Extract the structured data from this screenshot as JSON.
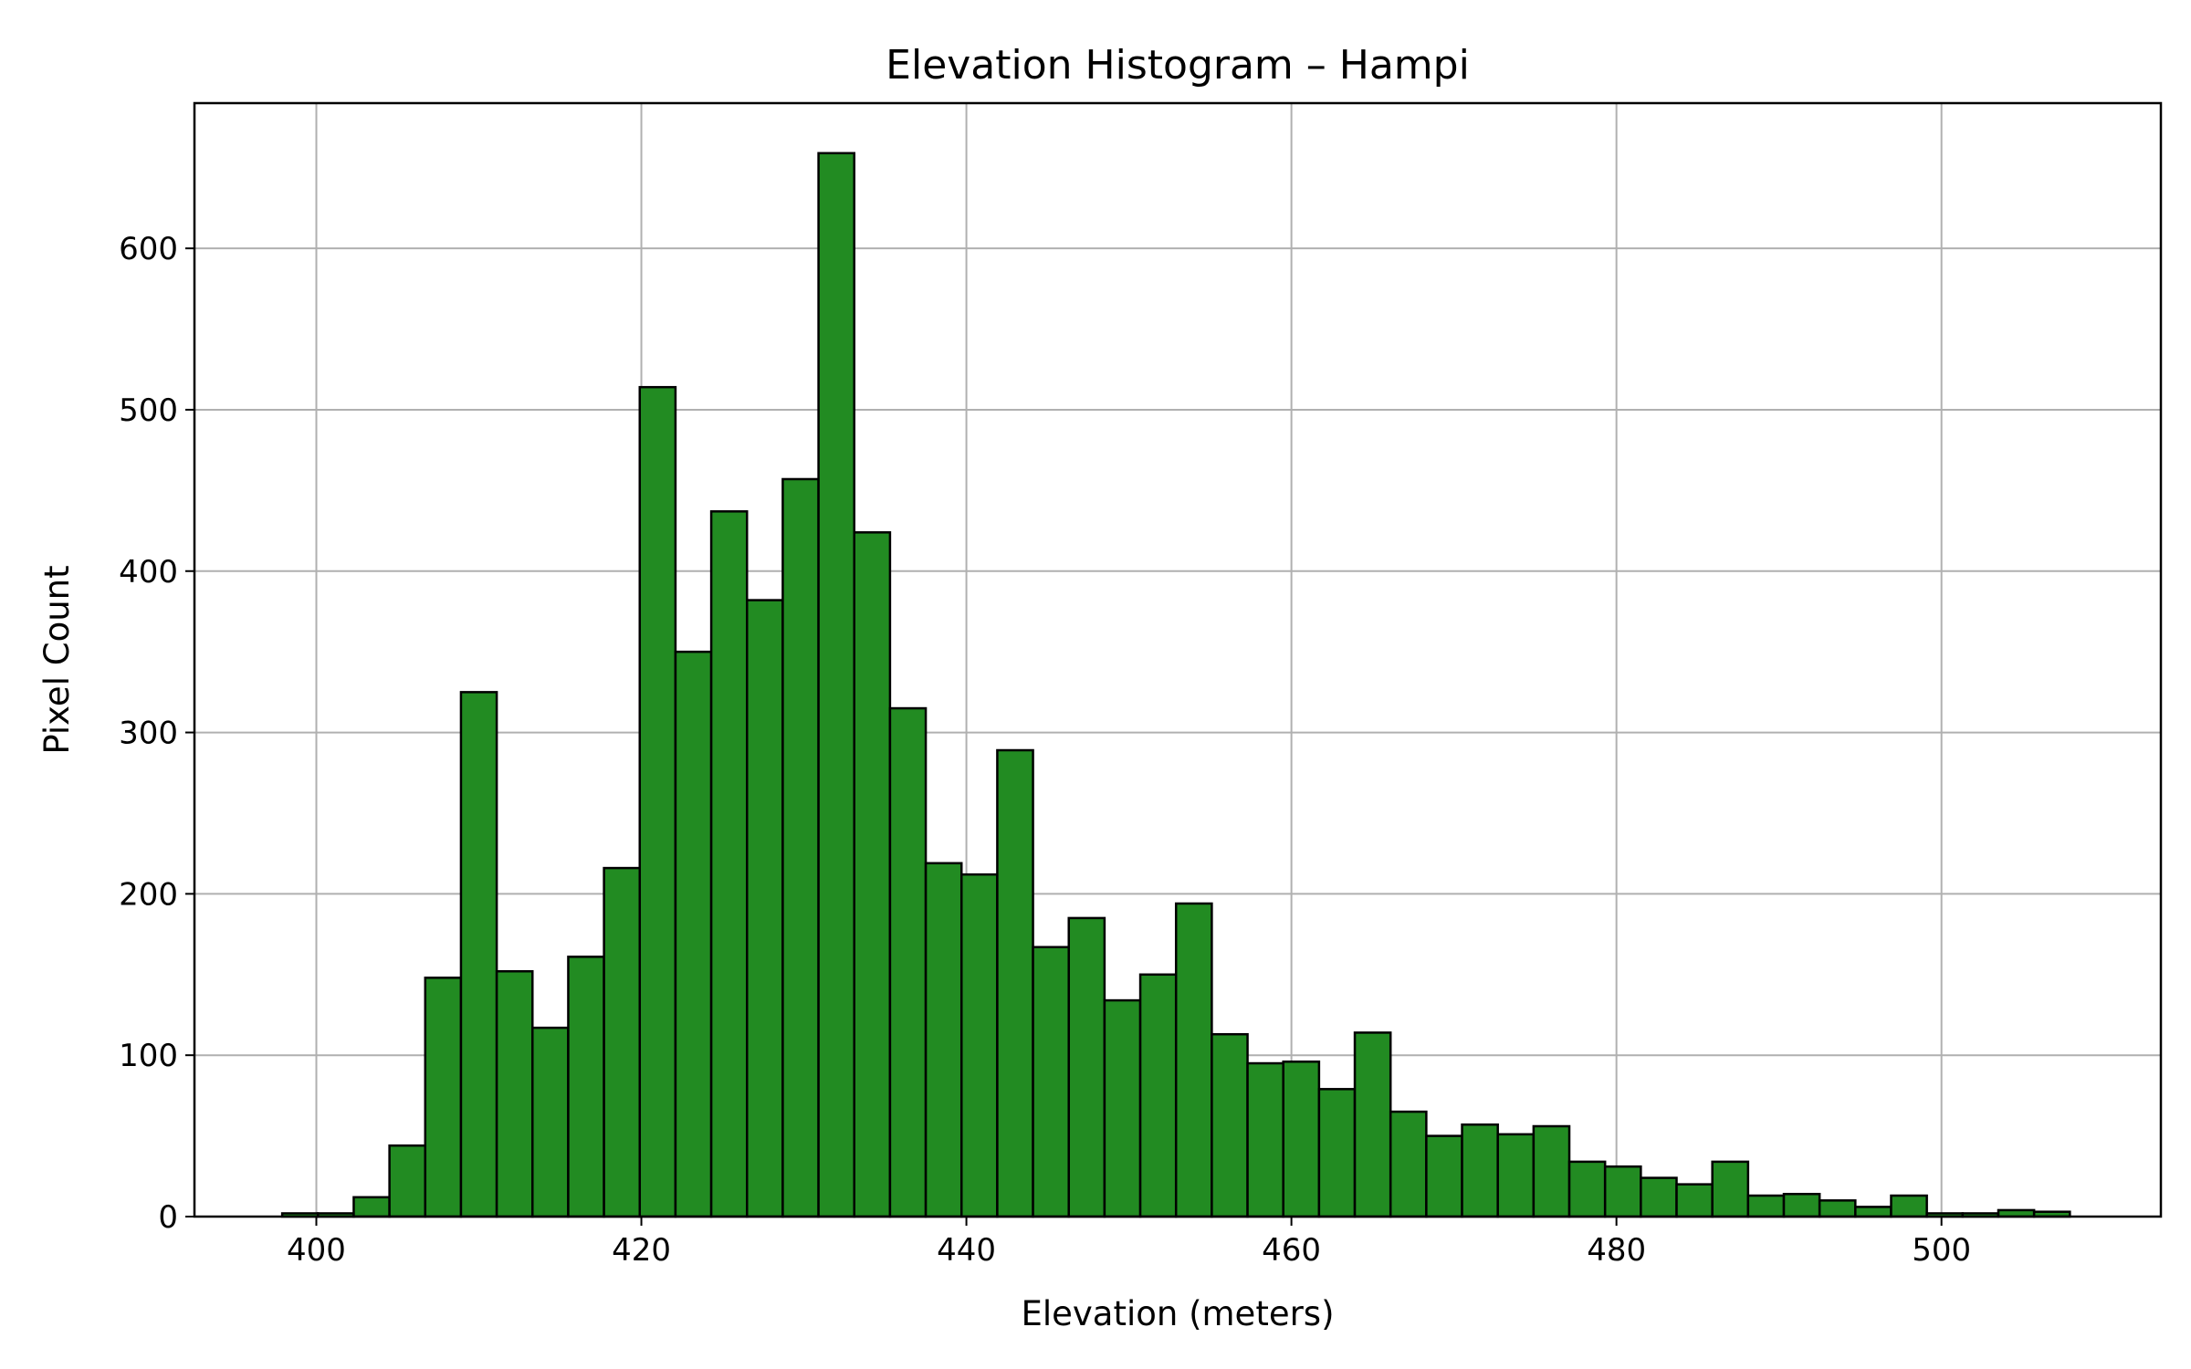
{
  "chart_data": {
    "type": "bar",
    "title": "Elevation Histogram – Hampi",
    "xlabel": "Elevation (meters)",
    "ylabel": "Pixel Count",
    "xlim": [
      392.5,
      513.5
    ],
    "ylim": [
      0,
      690
    ],
    "xticks": [
      400,
      420,
      440,
      460,
      480,
      500
    ],
    "yticks": [
      0,
      100,
      200,
      300,
      400,
      500,
      600
    ],
    "grid": true,
    "bin_start": 397.9,
    "bin_width": 2.2,
    "values": [
      2,
      2,
      12,
      44,
      148,
      325,
      152,
      117,
      161,
      216,
      514,
      350,
      437,
      382,
      457,
      659,
      424,
      315,
      219,
      212,
      289,
      167,
      185,
      134,
      150,
      194,
      113,
      95,
      96,
      79,
      114,
      65,
      50,
      57,
      51,
      56,
      34,
      31,
      24,
      20,
      34,
      13,
      14,
      10,
      6,
      13,
      2,
      2,
      4,
      3
    ],
    "colors": {
      "bar_fill": "#228B22",
      "bar_edge": "#000000",
      "grid": "#b0b0b0",
      "axes": "#000000"
    }
  }
}
